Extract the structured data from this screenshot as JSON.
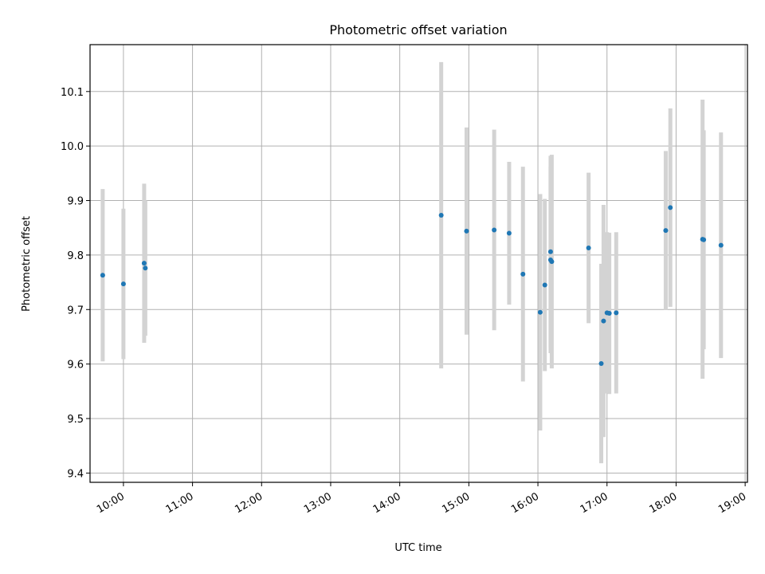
{
  "chart_data": {
    "type": "scatter",
    "title": "Photometric offset variation",
    "xlabel": "UTC time",
    "ylabel": "Photometric offset",
    "x_ticks": [
      "10:00",
      "11:00",
      "12:00",
      "13:00",
      "14:00",
      "15:00",
      "16:00",
      "17:00",
      "18:00",
      "19:00"
    ],
    "y_ticks": [
      9.4,
      9.5,
      9.6,
      9.7,
      9.8,
      9.9,
      10.0,
      10.1
    ],
    "x_ticks_minutes": [
      600,
      660,
      720,
      780,
      840,
      900,
      960,
      1020,
      1080,
      1140
    ],
    "xlim_minutes": [
      571,
      1142
    ],
    "ylim": [
      9.383,
      10.186
    ],
    "grid": true,
    "point_color": "#1f77b4",
    "errorbar_color": "#d3d3d3",
    "points": [
      {
        "time": "09:42",
        "y": 9.763,
        "err": 0.158
      },
      {
        "time": "10:00",
        "y": 9.747,
        "err": 0.138
      },
      {
        "time": "10:18",
        "y": 9.785,
        "err": 0.146
      },
      {
        "time": "10:19",
        "y": 9.776,
        "err": 0.124
      },
      {
        "time": "14:36",
        "y": 9.873,
        "err": 0.281
      },
      {
        "time": "14:58",
        "y": 9.844,
        "err": 0.19
      },
      {
        "time": "15:22",
        "y": 9.846,
        "err": 0.184
      },
      {
        "time": "15:35",
        "y": 9.84,
        "err": 0.131
      },
      {
        "time": "15:47",
        "y": 9.765,
        "err": 0.197
      },
      {
        "time": "16:02",
        "y": 9.695,
        "err": 0.217
      },
      {
        "time": "16:06",
        "y": 9.745,
        "err": 0.158
      },
      {
        "time": "16:11",
        "y": 9.806,
        "err": 0.176
      },
      {
        "time": "16:11",
        "y": 9.791,
        "err": 0.171
      },
      {
        "time": "16:12",
        "y": 9.788,
        "err": 0.196
      },
      {
        "time": "16:44",
        "y": 9.813,
        "err": 0.138
      },
      {
        "time": "16:55",
        "y": 9.601,
        "err": 0.183
      },
      {
        "time": "16:57",
        "y": 9.679,
        "err": 0.213
      },
      {
        "time": "17:00",
        "y": 9.694,
        "err": 0.148
      },
      {
        "time": "17:02",
        "y": 9.693,
        "err": 0.148
      },
      {
        "time": "17:08",
        "y": 9.694,
        "err": 0.148
      },
      {
        "time": "17:51",
        "y": 9.845,
        "err": 0.146
      },
      {
        "time": "17:55",
        "y": 9.887,
        "err": 0.182
      },
      {
        "time": "18:23",
        "y": 9.829,
        "err": 0.256
      },
      {
        "time": "18:24",
        "y": 9.828,
        "err": 0.201
      },
      {
        "time": "18:39",
        "y": 9.818,
        "err": 0.207
      }
    ]
  }
}
